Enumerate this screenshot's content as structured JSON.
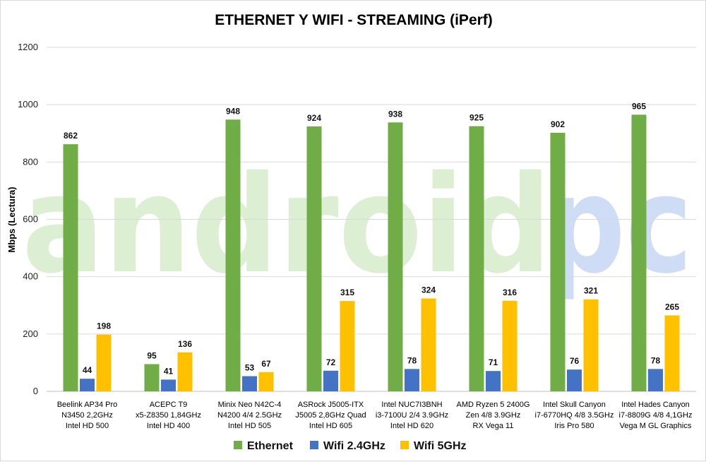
{
  "watermark": {
    "part1": "android",
    "part2": "pc"
  },
  "chart_data": {
    "type": "bar",
    "title": "ETHERNET Y WIFI - STREAMING (iPerf)",
    "ylabel": "Mbps (Lectura)",
    "xlabel": "",
    "ylim": [
      0,
      1200
    ],
    "yticks": [
      0,
      200,
      400,
      600,
      800,
      1000,
      1200
    ],
    "grid": true,
    "legend_position": "bottom",
    "categories": [
      [
        "Beelink AP34 Pro",
        "N3450 2,2GHz",
        "Intel HD 500"
      ],
      [
        "ACEPC T9",
        "x5-Z8350 1,84GHz",
        "Intel HD 400"
      ],
      [
        "Minix Neo N42C-4",
        "N4200 4/4 2.5GHz",
        "Intel HD 505"
      ],
      [
        "ASRock J5005-ITX",
        "J5005 2,8GHz Quad",
        "Intel HD 605"
      ],
      [
        "Intel NUC7I3BNH",
        "i3-7100U 2/4 3.9GHz",
        "Intel HD 620"
      ],
      [
        "AMD Ryzen 5 2400G",
        "Zen 4/8 3.9GHz",
        "RX Vega 11"
      ],
      [
        "Intel Skull Canyon",
        "i7-6770HQ 4/8 3.5GHz",
        "Iris Pro 580"
      ],
      [
        "Intel Hades Canyon",
        "i7-8809G 4/8 4,1GHz",
        "Vega M GL Graphics"
      ]
    ],
    "series": [
      {
        "name": "Ethernet",
        "color": "#70ad47",
        "values": [
          862,
          95,
          948,
          924,
          938,
          925,
          902,
          965
        ]
      },
      {
        "name": "Wifi 2.4GHz",
        "color": "#4472c4",
        "values": [
          44,
          41,
          53,
          72,
          78,
          71,
          76,
          78
        ]
      },
      {
        "name": "Wifi 5GHz",
        "color": "#ffc000",
        "values": [
          198,
          136,
          67,
          315,
          324,
          316,
          321,
          265
        ]
      }
    ]
  }
}
